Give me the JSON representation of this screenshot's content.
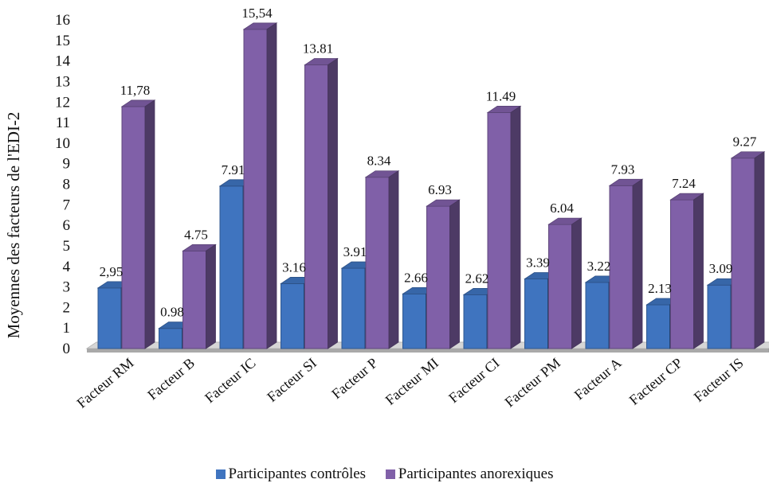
{
  "chart_data": {
    "type": "bar",
    "ylabel": "Moyennes  des facteurs de l'EDI-2",
    "ylim": [
      0,
      16
    ],
    "yticks": [
      "0",
      "1",
      "2",
      "3",
      "4",
      "5",
      "6",
      "7",
      "8",
      "9",
      "10",
      "11",
      "12",
      "13",
      "14",
      "15",
      "16"
    ],
    "categories": [
      "Facteur RM",
      "Facteur B",
      "Facteur IC",
      "Facteur SI",
      "Facteur P",
      "Facteur MI",
      "Facteur CI",
      "Facteur PM",
      "Facteur A",
      "Facteur CP",
      "Facteur IS"
    ],
    "series": [
      {
        "name": "Participantes contrôles",
        "color": "#3f74bf",
        "values": [
          2.95,
          0.98,
          7.91,
          3.16,
          3.91,
          2.66,
          2.62,
          3.39,
          3.22,
          2.13,
          3.09
        ],
        "labels": [
          "2,95",
          "0.98",
          "7.91",
          "3.16",
          "3.91",
          "2.66",
          "2.62",
          "3.39",
          "3.22",
          "2.13",
          "3.09"
        ]
      },
      {
        "name": "Participantes anorexiques",
        "color": "#8060a8",
        "values": [
          11.78,
          4.75,
          15.54,
          13.81,
          8.34,
          6.93,
          11.49,
          6.04,
          7.93,
          7.24,
          9.27
        ],
        "labels": [
          "11,78",
          "4.75",
          "15,54",
          "13.81",
          "8.34",
          "6.93",
          "11.49",
          "6.04",
          "7.93",
          "7.24",
          "9.27"
        ]
      }
    ],
    "grid": false,
    "style": "3d-bar",
    "legend_position": "bottom"
  }
}
